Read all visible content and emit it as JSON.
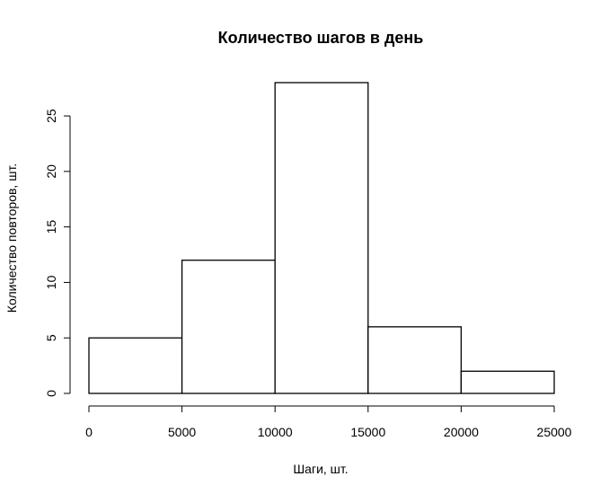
{
  "chart_data": {
    "type": "bar",
    "title": "Количество шагов в день",
    "xlabel": "Шаги, шт.",
    "ylabel": "Количество повторов, шт.",
    "bins": [
      {
        "from": 0,
        "to": 5000,
        "value": 5
      },
      {
        "from": 5000,
        "to": 10000,
        "value": 12
      },
      {
        "from": 10000,
        "to": 15000,
        "value": 28
      },
      {
        "from": 15000,
        "to": 20000,
        "value": 6
      },
      {
        "from": 20000,
        "to": 25000,
        "value": 2
      }
    ],
    "xlim": [
      0,
      25000
    ],
    "ylim": [
      0,
      28
    ],
    "xticks": [
      0,
      5000,
      10000,
      15000,
      20000,
      25000
    ],
    "yticks": [
      0,
      5,
      10,
      15,
      20,
      25
    ],
    "bar_fill": "#ffffff",
    "bar_stroke": "#000000",
    "grid": false,
    "legend": "none"
  }
}
